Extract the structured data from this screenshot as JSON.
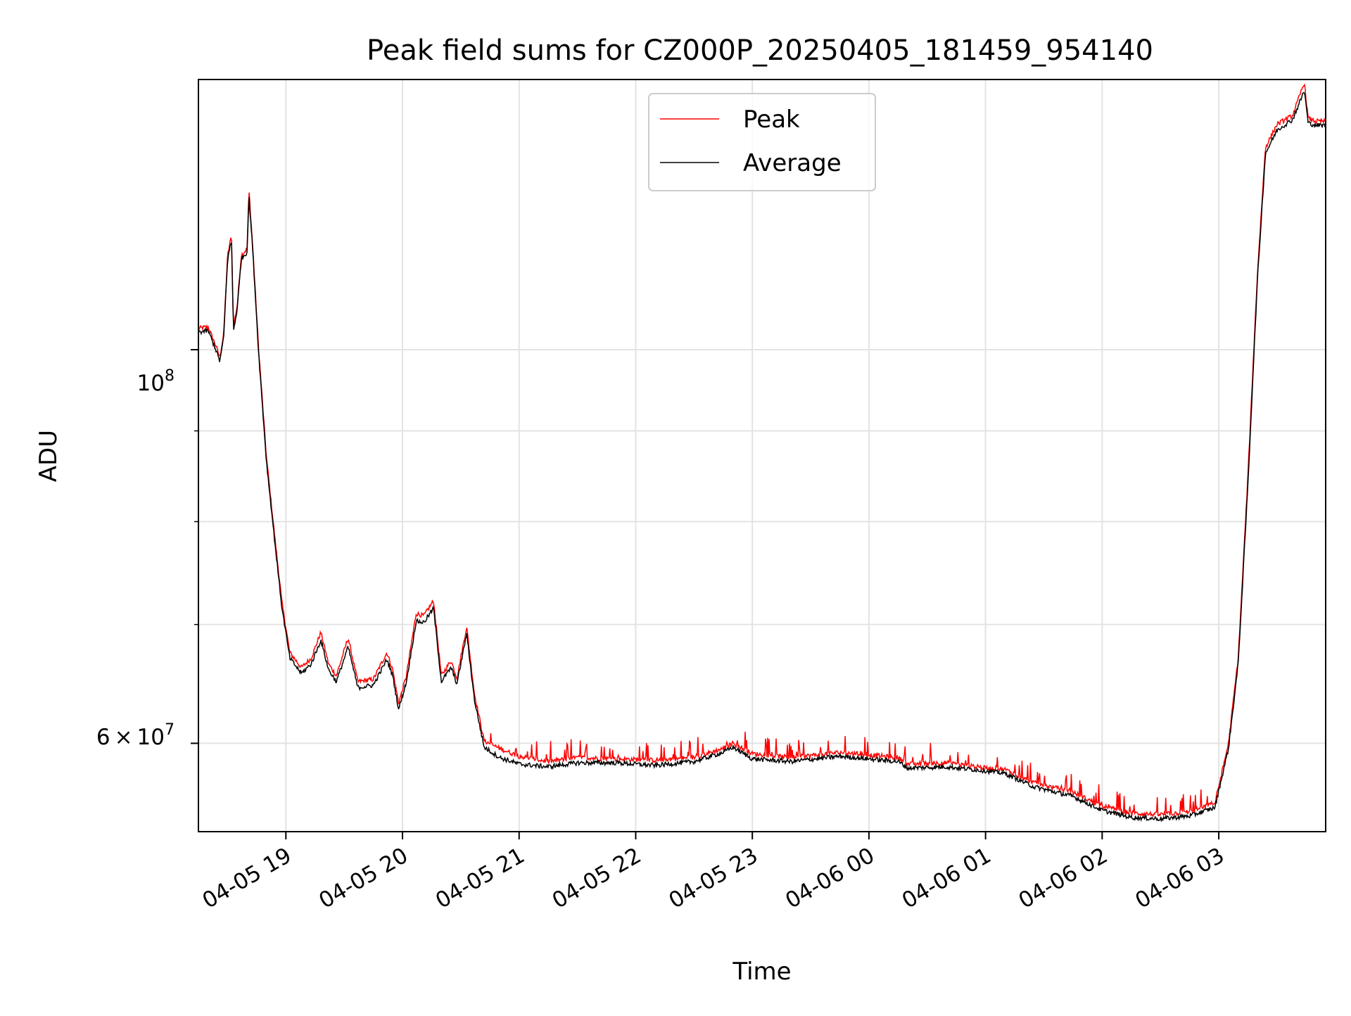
{
  "chart_data": {
    "type": "line",
    "title": "Peak field sums for CZ000P_20250405_181459_954140",
    "xlabel": "Time",
    "ylabel": "ADU",
    "y_scale": "log",
    "xlim": [
      "2025-04-05 18:15",
      "2025-04-06 03:55"
    ],
    "ylim": [
      53500000,
      142000000
    ],
    "x_ticks": [
      "04-05 19",
      "04-05 20",
      "04-05 21",
      "04-05 22",
      "04-05 23",
      "04-06 00",
      "04-06 01",
      "04-06 02",
      "04-06 03"
    ],
    "y_tick_labels": [
      {
        "base": "10",
        "exp": "8"
      },
      {
        "mant": "6",
        "base": "10",
        "exp": "7"
      }
    ],
    "grid": true,
    "legend_position": "upper center",
    "series": [
      {
        "name": "Peak",
        "color": "#ff0000",
        "points": [
          [
            "2025-04-05 18:15",
            102800000
          ],
          [
            "2025-04-05 18:20",
            103000000
          ],
          [
            "2025-04-05 18:24",
            100500000
          ],
          [
            "2025-04-05 18:26",
            99000000
          ],
          [
            "2025-04-05 18:28",
            102000000
          ],
          [
            "2025-04-05 18:30",
            113000000
          ],
          [
            "2025-04-05 18:32",
            116000000
          ],
          [
            "2025-04-05 18:33",
            103000000
          ],
          [
            "2025-04-05 18:35",
            106000000
          ],
          [
            "2025-04-05 18:37",
            113000000
          ],
          [
            "2025-04-05 18:40",
            114000000
          ],
          [
            "2025-04-05 18:41",
            123000000
          ],
          [
            "2025-04-05 18:43",
            114000000
          ],
          [
            "2025-04-05 18:46",
            100000000
          ],
          [
            "2025-04-05 18:50",
            87000000
          ],
          [
            "2025-04-05 18:54",
            79000000
          ],
          [
            "2025-04-05 18:58",
            72000000
          ],
          [
            "2025-04-05 19:02",
            67500000
          ],
          [
            "2025-04-05 19:08",
            66200000
          ],
          [
            "2025-04-05 19:13",
            67000000
          ],
          [
            "2025-04-05 19:18",
            69300000
          ],
          [
            "2025-04-05 19:22",
            66500000
          ],
          [
            "2025-04-05 19:26",
            65500000
          ],
          [
            "2025-04-05 19:32",
            68800000
          ],
          [
            "2025-04-05 19:37",
            65000000
          ],
          [
            "2025-04-05 19:45",
            65200000
          ],
          [
            "2025-04-05 19:52",
            67500000
          ],
          [
            "2025-04-05 19:55",
            66000000
          ],
          [
            "2025-04-05 19:58",
            63200000
          ],
          [
            "2025-04-05 20:02",
            65500000
          ],
          [
            "2025-04-05 20:07",
            71000000
          ],
          [
            "2025-04-05 20:11",
            70800000
          ],
          [
            "2025-04-05 20:16",
            72200000
          ],
          [
            "2025-04-05 20:20",
            65500000
          ],
          [
            "2025-04-05 20:25",
            66800000
          ],
          [
            "2025-04-05 20:28",
            65300000
          ],
          [
            "2025-04-05 20:33",
            69800000
          ],
          [
            "2025-04-05 20:37",
            64000000
          ],
          [
            "2025-04-05 20:42",
            60200000
          ],
          [
            "2025-04-05 20:50",
            59600000
          ],
          [
            "2025-04-05 21:00",
            59000000
          ],
          [
            "2025-04-05 21:15",
            58600000
          ],
          [
            "2025-04-05 21:30",
            58900000
          ],
          [
            "2025-04-05 21:50",
            58800000
          ],
          [
            "2025-04-05 22:10",
            58700000
          ],
          [
            "2025-04-05 22:30",
            58900000
          ],
          [
            "2025-04-05 22:45",
            59600000
          ],
          [
            "2025-04-05 22:50",
            60000000
          ],
          [
            "2025-04-05 23:00",
            59200000
          ],
          [
            "2025-04-05 23:20",
            58900000
          ],
          [
            "2025-04-05 23:45",
            59300000
          ],
          [
            "2025-04-06 00:00",
            59100000
          ],
          [
            "2025-04-06 00:15",
            58900000
          ],
          [
            "2025-04-06 00:20",
            58400000
          ],
          [
            "2025-04-06 00:40",
            58500000
          ],
          [
            "2025-04-06 01:00",
            58100000
          ],
          [
            "2025-04-06 01:10",
            58000000
          ],
          [
            "2025-04-06 01:25",
            57000000
          ],
          [
            "2025-04-06 01:45",
            56300000
          ],
          [
            "2025-04-06 02:00",
            55300000
          ],
          [
            "2025-04-06 02:15",
            54800000
          ],
          [
            "2025-04-06 02:30",
            54700000
          ],
          [
            "2025-04-06 02:45",
            54900000
          ],
          [
            "2025-04-06 02:58",
            55500000
          ],
          [
            "2025-04-06 03:05",
            60000000
          ],
          [
            "2025-04-06 03:10",
            67000000
          ],
          [
            "2025-04-06 03:15",
            85000000
          ],
          [
            "2025-04-06 03:18",
            100000000
          ],
          [
            "2025-04-06 03:20",
            111000000
          ],
          [
            "2025-04-06 03:24",
            130000000
          ],
          [
            "2025-04-06 03:30",
            134000000
          ],
          [
            "2025-04-06 03:38",
            135500000
          ],
          [
            "2025-04-06 03:44",
            141500000
          ],
          [
            "2025-04-06 03:46",
            135000000
          ],
          [
            "2025-04-06 03:50",
            134500000
          ],
          [
            "2025-04-06 03:55",
            134500000
          ]
        ]
      },
      {
        "name": "Average",
        "color": "#000000",
        "points": [
          [
            "2025-04-05 18:15",
            102300000
          ],
          [
            "2025-04-05 18:20",
            102500000
          ],
          [
            "2025-04-05 18:24",
            100000000
          ],
          [
            "2025-04-05 18:26",
            98500000
          ],
          [
            "2025-04-05 18:28",
            101500000
          ],
          [
            "2025-04-05 18:30",
            112500000
          ],
          [
            "2025-04-05 18:32",
            115300000
          ],
          [
            "2025-04-05 18:33",
            102500000
          ],
          [
            "2025-04-05 18:35",
            105500000
          ],
          [
            "2025-04-05 18:37",
            112500000
          ],
          [
            "2025-04-05 18:40",
            113500000
          ],
          [
            "2025-04-05 18:41",
            122000000
          ],
          [
            "2025-04-05 18:43",
            113500000
          ],
          [
            "2025-04-05 18:46",
            99500000
          ],
          [
            "2025-04-05 18:50",
            86500000
          ],
          [
            "2025-04-05 18:54",
            78500000
          ],
          [
            "2025-04-05 18:58",
            71500000
          ],
          [
            "2025-04-05 19:02",
            67000000
          ],
          [
            "2025-04-05 19:08",
            65700000
          ],
          [
            "2025-04-05 19:13",
            66500000
          ],
          [
            "2025-04-05 19:18",
            68600000
          ],
          [
            "2025-04-05 19:22",
            66000000
          ],
          [
            "2025-04-05 19:26",
            65000000
          ],
          [
            "2025-04-05 19:32",
            68000000
          ],
          [
            "2025-04-05 19:37",
            64500000
          ],
          [
            "2025-04-05 19:45",
            64700000
          ],
          [
            "2025-04-05 19:52",
            66900000
          ],
          [
            "2025-04-05 19:55",
            65500000
          ],
          [
            "2025-04-05 19:58",
            62700000
          ],
          [
            "2025-04-05 20:02",
            65000000
          ],
          [
            "2025-04-05 20:07",
            70300000
          ],
          [
            "2025-04-05 20:11",
            70200000
          ],
          [
            "2025-04-05 20:16",
            71500000
          ],
          [
            "2025-04-05 20:20",
            65000000
          ],
          [
            "2025-04-05 20:25",
            66200000
          ],
          [
            "2025-04-05 20:28",
            64800000
          ],
          [
            "2025-04-05 20:33",
            69200000
          ],
          [
            "2025-04-05 20:37",
            63500000
          ],
          [
            "2025-04-05 20:42",
            59700000
          ],
          [
            "2025-04-05 20:50",
            58900000
          ],
          [
            "2025-04-05 21:00",
            58400000
          ],
          [
            "2025-04-05 21:15",
            58200000
          ],
          [
            "2025-04-05 21:30",
            58500000
          ],
          [
            "2025-04-05 21:50",
            58500000
          ],
          [
            "2025-04-05 22:10",
            58300000
          ],
          [
            "2025-04-05 22:30",
            58600000
          ],
          [
            "2025-04-05 22:45",
            59300000
          ],
          [
            "2025-04-05 22:50",
            59700000
          ],
          [
            "2025-04-05 23:00",
            58800000
          ],
          [
            "2025-04-05 23:20",
            58600000
          ],
          [
            "2025-04-05 23:45",
            59000000
          ],
          [
            "2025-04-06 00:00",
            58800000
          ],
          [
            "2025-04-06 00:15",
            58600000
          ],
          [
            "2025-04-06 00:20",
            58100000
          ],
          [
            "2025-04-06 00:40",
            58200000
          ],
          [
            "2025-04-06 01:00",
            57900000
          ],
          [
            "2025-04-06 01:10",
            57700000
          ],
          [
            "2025-04-06 01:25",
            56700000
          ],
          [
            "2025-04-06 01:45",
            56000000
          ],
          [
            "2025-04-06 02:00",
            55000000
          ],
          [
            "2025-04-06 02:15",
            54500000
          ],
          [
            "2025-04-06 02:30",
            54400000
          ],
          [
            "2025-04-06 02:45",
            54600000
          ],
          [
            "2025-04-06 02:58",
            55200000
          ],
          [
            "2025-04-06 03:05",
            59600000
          ],
          [
            "2025-04-06 03:10",
            66500000
          ],
          [
            "2025-04-06 03:15",
            84000000
          ],
          [
            "2025-04-06 03:18",
            99000000
          ],
          [
            "2025-04-06 03:20",
            110000000
          ],
          [
            "2025-04-06 03:24",
            129000000
          ],
          [
            "2025-04-06 03:30",
            133000000
          ],
          [
            "2025-04-06 03:38",
            134800000
          ],
          [
            "2025-04-06 03:44",
            140000000
          ],
          [
            "2025-04-06 03:46",
            134200000
          ],
          [
            "2025-04-06 03:50",
            133800000
          ],
          [
            "2025-04-06 03:55",
            133800000
          ]
        ]
      }
    ]
  }
}
